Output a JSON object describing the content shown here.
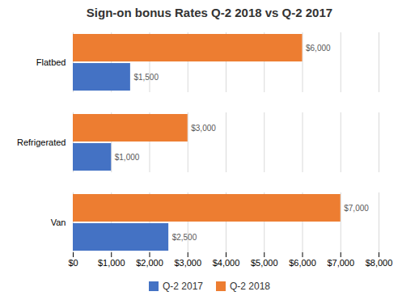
{
  "chart_data": {
    "type": "bar",
    "orientation": "horizontal",
    "title": "Sign-on bonus Rates Q-2 2018 vs Q-2 2017",
    "categories": [
      "Van",
      "Refrigerated",
      "Flatbed"
    ],
    "series": [
      {
        "name": "Q-2 2017",
        "color": "#4472C4",
        "values": [
          2500,
          1000,
          1500
        ],
        "value_labels": [
          "$2,500",
          "$1,000",
          "$1,500"
        ]
      },
      {
        "name": "Q-2 2018",
        "color": "#ED7D31",
        "values": [
          7000,
          3000,
          6000
        ],
        "value_labels": [
          "$7,000",
          "$3,000",
          "$6,000"
        ]
      }
    ],
    "xlim": [
      0,
      8000
    ],
    "xticks": [
      {
        "value": 0,
        "label": "$0"
      },
      {
        "value": 1000,
        "label": "$1,000"
      },
      {
        "value": 2000,
        "label": "$2,000"
      },
      {
        "value": 3000,
        "label": "$3,000"
      },
      {
        "value": 4000,
        "label": "$4,000"
      },
      {
        "value": 5000,
        "label": "$5,000"
      },
      {
        "value": 6000,
        "label": "$6,000"
      },
      {
        "value": 7000,
        "label": "$7,000"
      },
      {
        "value": 8000,
        "label": "$8,000"
      }
    ],
    "grid": "x",
    "data_labels": true,
    "legend": "bottom"
  }
}
